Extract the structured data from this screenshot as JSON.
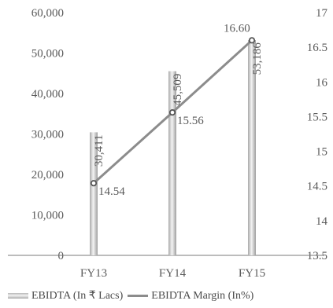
{
  "chart_data": {
    "type": "bar+line",
    "categories": [
      "FY13",
      "FY14",
      "FY15"
    ],
    "series": [
      {
        "name": "EBIDTA (In ₹ Lacs)",
        "type": "bar",
        "axis": "left",
        "values": [
          30411,
          45509,
          53186
        ],
        "labels": [
          "30,411",
          "45,509",
          "53,186"
        ]
      },
      {
        "name": "EBIDTA Margin (In%)",
        "type": "line",
        "axis": "right",
        "values": [
          14.54,
          15.56,
          16.6
        ],
        "labels": [
          "14.54",
          "15.56",
          "16.60"
        ]
      }
    ],
    "left_axis": {
      "ylim": [
        0,
        60000
      ],
      "ticks": [
        "0",
        "10,000",
        "20,000",
        "30,000",
        "40,000",
        "50,000",
        "60,000"
      ]
    },
    "right_axis": {
      "ylim": [
        13.5,
        17
      ],
      "ticks": [
        "13.5",
        "14",
        "14.5",
        "15",
        "15.5",
        "16",
        "16.5",
        "17"
      ]
    },
    "grid": false,
    "legend_position": "bottom",
    "colors": {
      "bar": "#c8c8c8",
      "line": "#8c8c8c",
      "text": "#5a5a5a"
    }
  }
}
